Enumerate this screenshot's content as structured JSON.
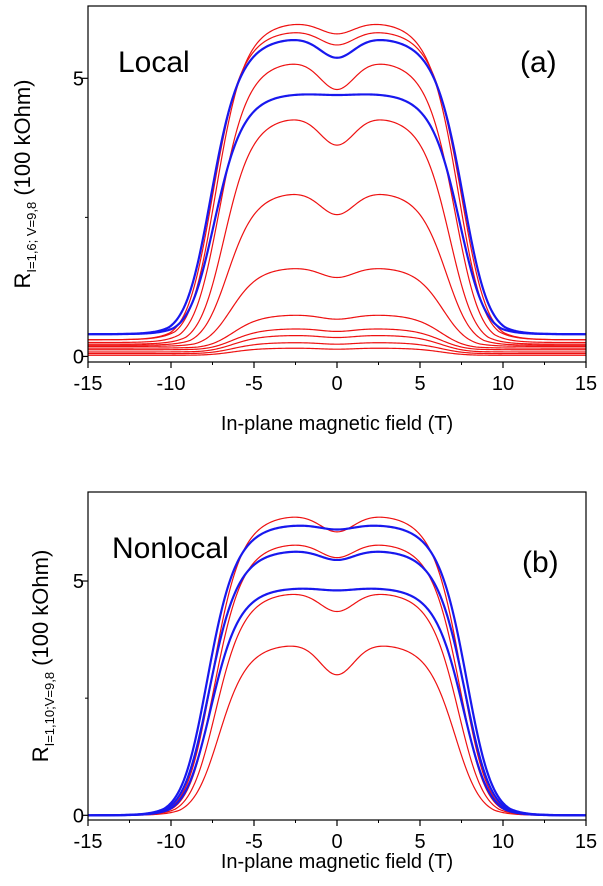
{
  "chart_data": [
    {
      "type": "line",
      "panel_label": "(a)",
      "annotation": "Local",
      "xlabel": "In-plane magnetic field (T)",
      "ylabel_main": "R",
      "ylabel_sub": "I=1,6; V=9,8",
      "ylabel_unit": "(100 kOhm)",
      "xlim": [
        -15,
        15
      ],
      "ylim": [
        -0.1,
        6.3
      ],
      "x_ticks": [
        -15,
        -10,
        -5,
        0,
        5,
        10,
        15
      ],
      "y_ticks": [
        0,
        5
      ],
      "series": [
        {
          "color": "#ee1111",
          "plateau": 6.0,
          "dip": 0.2,
          "baseline": 0.3,
          "edge": 7.5,
          "width": 1.2
        },
        {
          "color": "#ee1111",
          "plateau": 5.85,
          "dip": 0.25,
          "baseline": 0.3,
          "edge": 7.7,
          "width": 1.2
        },
        {
          "color": "#ee1111",
          "plateau": 5.3,
          "dip": 0.5,
          "baseline": 0.25,
          "edge": 7.3,
          "width": 1.2
        },
        {
          "color": "#ee1111",
          "plateau": 4.3,
          "dip": 0.5,
          "baseline": 0.22,
          "edge": 7.0,
          "width": 1.2
        },
        {
          "color": "#ee1111",
          "plateau": 2.95,
          "dip": 0.4,
          "baseline": 0.2,
          "edge": 6.8,
          "width": 1.2
        },
        {
          "color": "#ee1111",
          "plateau": 1.6,
          "dip": 0.18,
          "baseline": 0.18,
          "edge": 6.6,
          "width": 1.2
        },
        {
          "color": "#ee1111",
          "plateau": 0.75,
          "dip": 0.08,
          "baseline": 0.15,
          "edge": 6.5,
          "width": 1.2
        },
        {
          "color": "#ee1111",
          "plateau": 0.5,
          "dip": 0.05,
          "baseline": 0.12,
          "edge": 6.5,
          "width": 1.2
        },
        {
          "color": "#ee1111",
          "plateau": 0.38,
          "dip": 0.04,
          "baseline": 0.08,
          "edge": 6.5,
          "width": 1.2
        },
        {
          "color": "#ee1111",
          "plateau": 0.25,
          "dip": 0.03,
          "baseline": 0.05,
          "edge": 6.5,
          "width": 1.2
        },
        {
          "color": "#ee1111",
          "plateau": 0.15,
          "dip": 0.02,
          "baseline": 0.02,
          "edge": 6.5,
          "width": 1.2
        },
        {
          "color": "#1818ee",
          "plateau": 5.72,
          "dip": 0.35,
          "baseline": 0.4,
          "edge": 7.8,
          "width": 2.2
        },
        {
          "color": "#1818ee",
          "plateau": 4.72,
          "dip": 0.02,
          "baseline": 0.4,
          "edge": 7.6,
          "width": 2.2
        }
      ]
    },
    {
      "type": "line",
      "panel_label": "(b)",
      "annotation": "Nonlocal",
      "xlabel": "In-plane magnetic field (T)",
      "ylabel_main": "R",
      "ylabel_sub": "I=1,10;V=9,8",
      "ylabel_unit": "(100 kOhm)",
      "xlim": [
        -15,
        15
      ],
      "ylim": [
        -0.1,
        6.9
      ],
      "x_ticks": [
        -15,
        -10,
        -5,
        0,
        5,
        10,
        15
      ],
      "y_ticks": [
        0,
        5
      ],
      "series": [
        {
          "color": "#ee1111",
          "plateau": 6.4,
          "dip": 0.35,
          "baseline": 0.0,
          "edge": 7.7,
          "width": 1.2
        },
        {
          "color": "#ee1111",
          "plateau": 5.8,
          "dip": 0.3,
          "baseline": 0.0,
          "edge": 7.6,
          "width": 1.2
        },
        {
          "color": "#ee1111",
          "plateau": 4.75,
          "dip": 0.4,
          "baseline": 0.0,
          "edge": 7.5,
          "width": 1.2
        },
        {
          "color": "#ee1111",
          "plateau": 3.65,
          "dip": 0.65,
          "baseline": 0.0,
          "edge": 7.3,
          "width": 1.2
        },
        {
          "color": "#1818ee",
          "plateau": 6.2,
          "dip": 0.1,
          "baseline": 0.0,
          "edge": 8.0,
          "width": 2.2
        },
        {
          "color": "#1818ee",
          "plateau": 5.65,
          "dip": 0.2,
          "baseline": 0.0,
          "edge": 7.9,
          "width": 2.2
        },
        {
          "color": "#1818ee",
          "plateau": 4.85,
          "dip": 0.05,
          "baseline": 0.0,
          "edge": 7.8,
          "width": 2.2
        }
      ]
    }
  ]
}
